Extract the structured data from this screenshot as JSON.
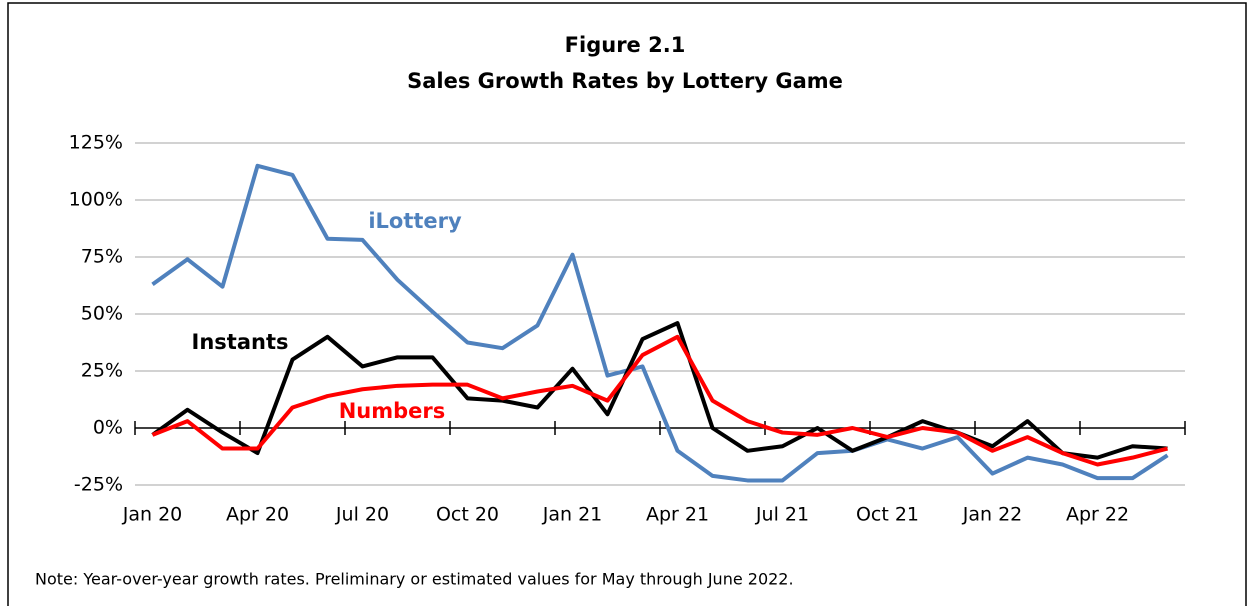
{
  "chart_data": {
    "type": "line",
    "title": "Figure 2.1",
    "subtitle": "Sales Growth Rates by Lottery Game",
    "note": "Note: Year-over-year growth rates. Preliminary or estimated values for May through June 2022.",
    "categories": [
      "Jan 20",
      null,
      null,
      "Apr 20",
      null,
      null,
      "Jul 20",
      null,
      null,
      "Oct 20",
      null,
      null,
      "Jan 21",
      null,
      null,
      "Apr 21",
      null,
      null,
      "Jul 21",
      null,
      null,
      "Oct 21",
      null,
      null,
      "Jan 22",
      null,
      null,
      "Apr 22",
      null,
      null
    ],
    "series": [
      {
        "name": "iLottery",
        "color": "#4f81bd",
        "values": [
          63,
          74,
          62,
          115,
          111,
          83,
          82.5,
          65,
          51,
          37.5,
          35,
          45,
          76,
          23,
          27,
          -10,
          -21,
          -23,
          -23,
          -11,
          -10,
          -5,
          -9,
          -4,
          -20,
          -13,
          -16,
          -22,
          -22,
          -12
        ]
      },
      {
        "name": "Instants",
        "color": "#000000",
        "values": [
          -3,
          8,
          -2,
          -11,
          30,
          40,
          27,
          31,
          31,
          13,
          12,
          9,
          26,
          6,
          39,
          46,
          0,
          -10,
          -8,
          0,
          -10,
          -4,
          3,
          -2,
          -8,
          3,
          -11,
          -13,
          -8,
          -9
        ]
      },
      {
        "name": "Numbers",
        "color": "#ff0000",
        "values": [
          -3,
          3,
          -9,
          -9,
          9,
          14,
          17,
          18.5,
          19,
          19,
          13,
          16,
          18.5,
          12,
          32,
          40,
          12,
          3,
          -2,
          -3,
          0,
          -4,
          0,
          -2,
          -10,
          -4,
          -11,
          -16,
          -13,
          -9
        ]
      }
    ],
    "ylim": [
      -25,
      125
    ],
    "yticks": [
      {
        "value": -25,
        "label": "-25%"
      },
      {
        "value": 0,
        "label": "0%"
      },
      {
        "value": 25,
        "label": "25%"
      },
      {
        "value": 50,
        "label": "50%"
      },
      {
        "value": 75,
        "label": "75%"
      },
      {
        "value": 100,
        "label": "100%"
      },
      {
        "value": 125,
        "label": "125%"
      }
    ],
    "grid": true
  }
}
